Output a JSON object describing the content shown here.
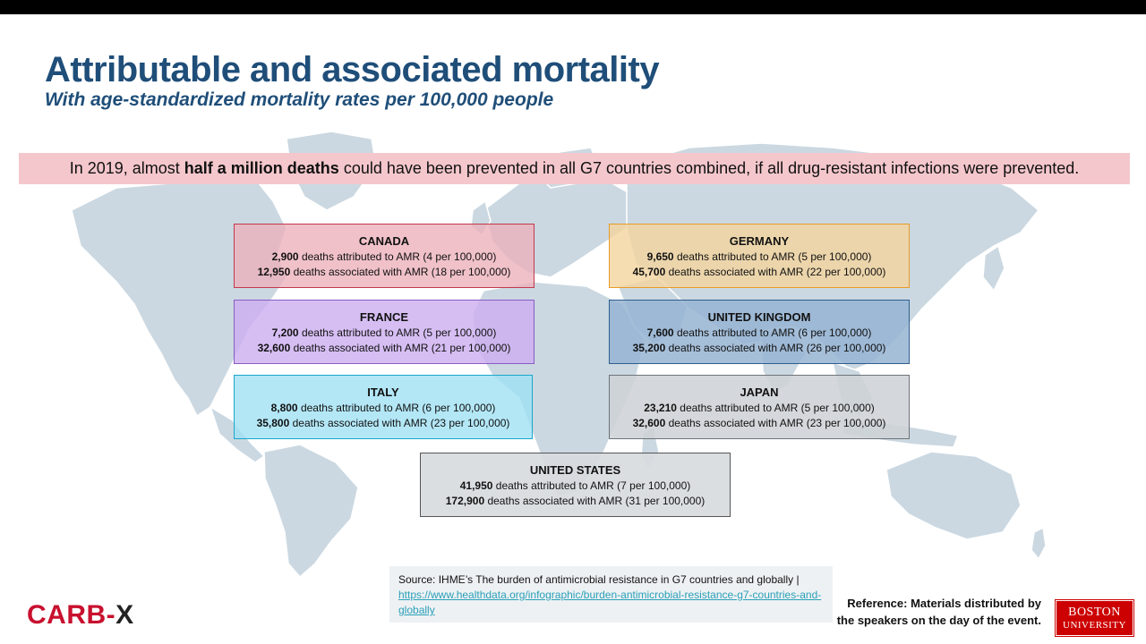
{
  "slide": {
    "title": "Attributable and associated mortality",
    "subtitle": "With age-standardized mortality rates per 100,000 people",
    "banner": {
      "pre": "In 2019, almost ",
      "bold": "half a million deaths",
      "post": " could have been prevented in all G7 countries combined, if all drug-resistant infections were prevented."
    }
  },
  "countries": [
    {
      "name": "CANADA",
      "attr_count": "2,900",
      "attr_text": " deaths attributed to AMR (4 per 100,000)",
      "assoc_count": "12,950",
      "assoc_text": " deaths associated with AMR (18 per 100,000)"
    },
    {
      "name": "FRANCE",
      "attr_count": "7,200",
      "attr_text": " deaths attributed to AMR (5 per 100,000)",
      "assoc_count": "32,600",
      "assoc_text": " deaths associated with AMR (21 per 100,000)"
    },
    {
      "name": "ITALY",
      "attr_count": "8,800",
      "attr_text": " deaths attributed to AMR (6 per 100,000)",
      "assoc_count": "35,800",
      "assoc_text": " deaths associated with AMR (23 per 100,000)"
    },
    {
      "name": "GERMANY",
      "attr_count": "9,650",
      "attr_text": " deaths attributed to AMR (5 per 100,000)",
      "assoc_count": "45,700",
      "assoc_text": " deaths associated with AMR (22 per 100,000)"
    },
    {
      "name": "UNITED KINGDOM",
      "attr_count": "7,600",
      "attr_text": " deaths attributed to AMR (6 per 100,000)",
      "assoc_count": "35,200",
      "assoc_text": " deaths associated with AMR (26 per 100,000)"
    },
    {
      "name": "JAPAN",
      "attr_count": "23,210",
      "attr_text": " deaths attributed to AMR (5 per 100,000)",
      "assoc_count": "32,600",
      "assoc_text": " deaths associated with AMR (23 per 100,000)"
    },
    {
      "name": "UNITED STATES",
      "attr_count": "41,950",
      "attr_text": " deaths attributed to AMR (7 per 100,000)",
      "assoc_count": "172,900",
      "assoc_text": " deaths associated with AMR (31 per 100,000)"
    }
  ],
  "source": {
    "text": "Source: IHME’s The burden of antimicrobial resistance in G7 countries and globally | ",
    "link_text": "https://www.healthdata.org/infographic/burden-antimicrobial-resistance-g7-countries-and-globally",
    "link_href": "https://www.healthdata.org/infographic/burden-antimicrobial-resistance-g7-countries-and-globally"
  },
  "reference": {
    "line1": "Reference: Materials distributed by",
    "line2": "the speakers on the day of the event."
  },
  "logos": {
    "carbx_prefix": "CARB",
    "carbx_dash": "-",
    "carbx_suffix": "X",
    "bu_line1": "BOSTON",
    "bu_line2": "UNIVERSITY"
  },
  "colors": {
    "title": "#1f4e79",
    "banner_bg": "#f4c7cc",
    "carbx_red": "#c8102e",
    "bu_red": "#cc0000",
    "map_fill": "#cbd8e1"
  }
}
